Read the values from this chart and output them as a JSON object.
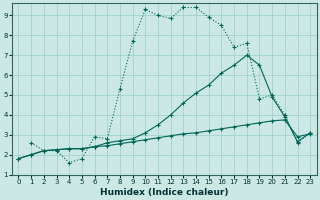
{
  "xlabel": "Humidex (Indice chaleur)",
  "bg_color": "#cce8e4",
  "grid_color": "#99cccc",
  "line_color": "#006655",
  "xlim": [
    -0.5,
    23.5
  ],
  "ylim": [
    1,
    9.6
  ],
  "xticks": [
    0,
    1,
    2,
    3,
    4,
    5,
    6,
    7,
    8,
    9,
    10,
    11,
    12,
    13,
    14,
    15,
    16,
    17,
    18,
    19,
    20,
    21,
    22,
    23
  ],
  "yticks": [
    1,
    2,
    3,
    4,
    5,
    6,
    7,
    8,
    9
  ],
  "series": [
    {
      "ls": "-",
      "x": [
        0,
        1,
        2,
        3,
        4,
        5,
        6,
        7,
        8,
        9,
        10,
        11,
        12,
        13,
        14,
        15,
        16,
        17,
        18,
        19,
        20,
        21,
        22,
        23
      ],
      "y": [
        1.8,
        2.0,
        2.2,
        2.25,
        2.3,
        2.3,
        2.4,
        2.45,
        2.55,
        2.65,
        2.75,
        2.85,
        2.95,
        3.05,
        3.1,
        3.2,
        3.3,
        3.4,
        3.5,
        3.6,
        3.7,
        3.75,
        2.9,
        3.05
      ]
    },
    {
      "ls": "-",
      "x": [
        0,
        1,
        2,
        3,
        4,
        5,
        6,
        7,
        8,
        9,
        10,
        11,
        12,
        13,
        14,
        15,
        16,
        17,
        18,
        19,
        20,
        21,
        22,
        23
      ],
      "y": [
        1.8,
        2.0,
        2.2,
        2.25,
        2.3,
        2.3,
        2.4,
        2.6,
        2.7,
        2.8,
        3.1,
        3.5,
        4.0,
        4.6,
        5.1,
        5.5,
        6.1,
        6.5,
        7.0,
        6.5,
        4.9,
        3.9,
        2.65,
        3.1
      ]
    },
    {
      "ls": ":",
      "x": [
        1,
        2,
        3,
        4,
        5,
        6,
        7,
        8,
        9,
        10,
        11,
        12,
        13,
        14,
        15,
        16,
        17,
        18,
        19,
        20,
        21,
        22,
        23
      ],
      "y": [
        2.6,
        2.2,
        2.2,
        1.6,
        1.8,
        2.9,
        2.8,
        5.3,
        7.7,
        9.3,
        9.0,
        8.85,
        9.4,
        9.4,
        8.9,
        8.5,
        7.4,
        7.6,
        4.8,
        5.0,
        4.0,
        2.6,
        3.1
      ]
    }
  ]
}
